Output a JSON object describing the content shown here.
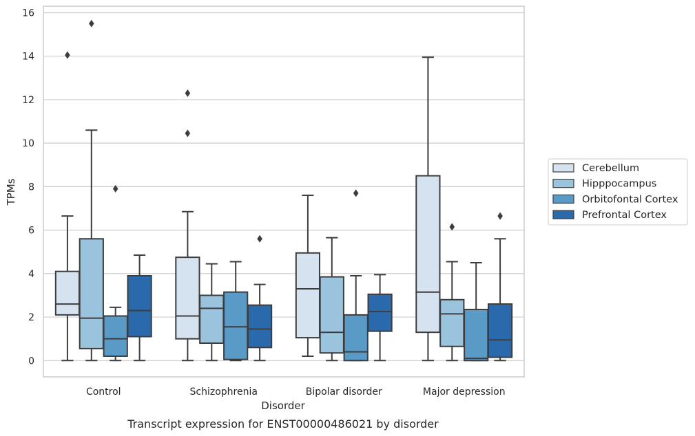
{
  "chart_data": {
    "type": "box",
    "xlabel": "Disorder",
    "ylabel": "TPMs",
    "caption": "Transcript expression for ENST00000486021 by disorder",
    "ylim": [
      -0.75,
      16.3
    ],
    "yticks": [
      0,
      2,
      4,
      6,
      8,
      10,
      12,
      14,
      16
    ],
    "grid": "horizontal",
    "legend_position": "right",
    "categories": [
      "Control",
      "Schizophrenia",
      "Bipolar disorder",
      "Major depression"
    ],
    "series": [
      {
        "name": "Cerebellum",
        "color": "#d5e3f0",
        "boxes": [
          {
            "whislo": 0,
            "q1": 2.1,
            "med": 2.6,
            "q3": 4.1,
            "whishi": 6.65,
            "fliers": [
              14.05
            ]
          },
          {
            "whislo": 0,
            "q1": 1.0,
            "med": 2.05,
            "q3": 4.75,
            "whishi": 6.85,
            "fliers": [
              10.45,
              12.3
            ]
          },
          {
            "whislo": 0.2,
            "q1": 1.05,
            "med": 3.3,
            "q3": 4.95,
            "whishi": 7.6,
            "fliers": []
          },
          {
            "whislo": 0,
            "q1": 1.3,
            "med": 3.15,
            "q3": 8.5,
            "whishi": 13.95,
            "fliers": []
          }
        ]
      },
      {
        "name": "Hipppocampus",
        "color": "#9ac4dd",
        "boxes": [
          {
            "whislo": 0,
            "q1": 0.55,
            "med": 1.95,
            "q3": 5.6,
            "whishi": 10.6,
            "fliers": [
              15.5
            ]
          },
          {
            "whislo": 0,
            "q1": 0.8,
            "med": 2.4,
            "q3": 3.0,
            "whishi": 4.45,
            "fliers": []
          },
          {
            "whislo": 0,
            "q1": 0.35,
            "med": 1.3,
            "q3": 3.85,
            "whishi": 5.65,
            "fliers": []
          },
          {
            "whislo": 0,
            "q1": 0.65,
            "med": 2.15,
            "q3": 2.8,
            "whishi": 4.55,
            "fliers": [
              6.15
            ]
          }
        ]
      },
      {
        "name": "Orbitofontal Cortex",
        "color": "#5a9ac7",
        "boxes": [
          {
            "whislo": 0,
            "q1": 0.2,
            "med": 1.0,
            "q3": 2.05,
            "whishi": 2.45,
            "fliers": [
              7.9
            ]
          },
          {
            "whislo": 0,
            "q1": 0.05,
            "med": 1.55,
            "q3": 3.15,
            "whishi": 4.55,
            "fliers": []
          },
          {
            "whislo": 0,
            "q1": 0.0,
            "med": 0.4,
            "q3": 2.1,
            "whishi": 3.9,
            "fliers": [
              7.7
            ]
          },
          {
            "whislo": 0,
            "q1": 0.0,
            "med": 0.1,
            "q3": 2.35,
            "whishi": 4.5,
            "fliers": []
          }
        ]
      },
      {
        "name": "Prefrontal Cortex",
        "color": "#2a6aac",
        "boxes": [
          {
            "whislo": 0,
            "q1": 1.1,
            "med": 2.3,
            "q3": 3.9,
            "whishi": 4.85,
            "fliers": []
          },
          {
            "whislo": 0,
            "q1": 0.6,
            "med": 1.45,
            "q3": 2.55,
            "whishi": 3.5,
            "fliers": [
              5.6
            ]
          },
          {
            "whislo": 0,
            "q1": 1.35,
            "med": 2.25,
            "q3": 3.05,
            "whishi": 3.95,
            "fliers": []
          },
          {
            "whislo": 0,
            "q1": 0.15,
            "med": 0.95,
            "q3": 2.6,
            "whishi": 5.6,
            "fliers": [
              6.65
            ]
          }
        ]
      }
    ]
  }
}
